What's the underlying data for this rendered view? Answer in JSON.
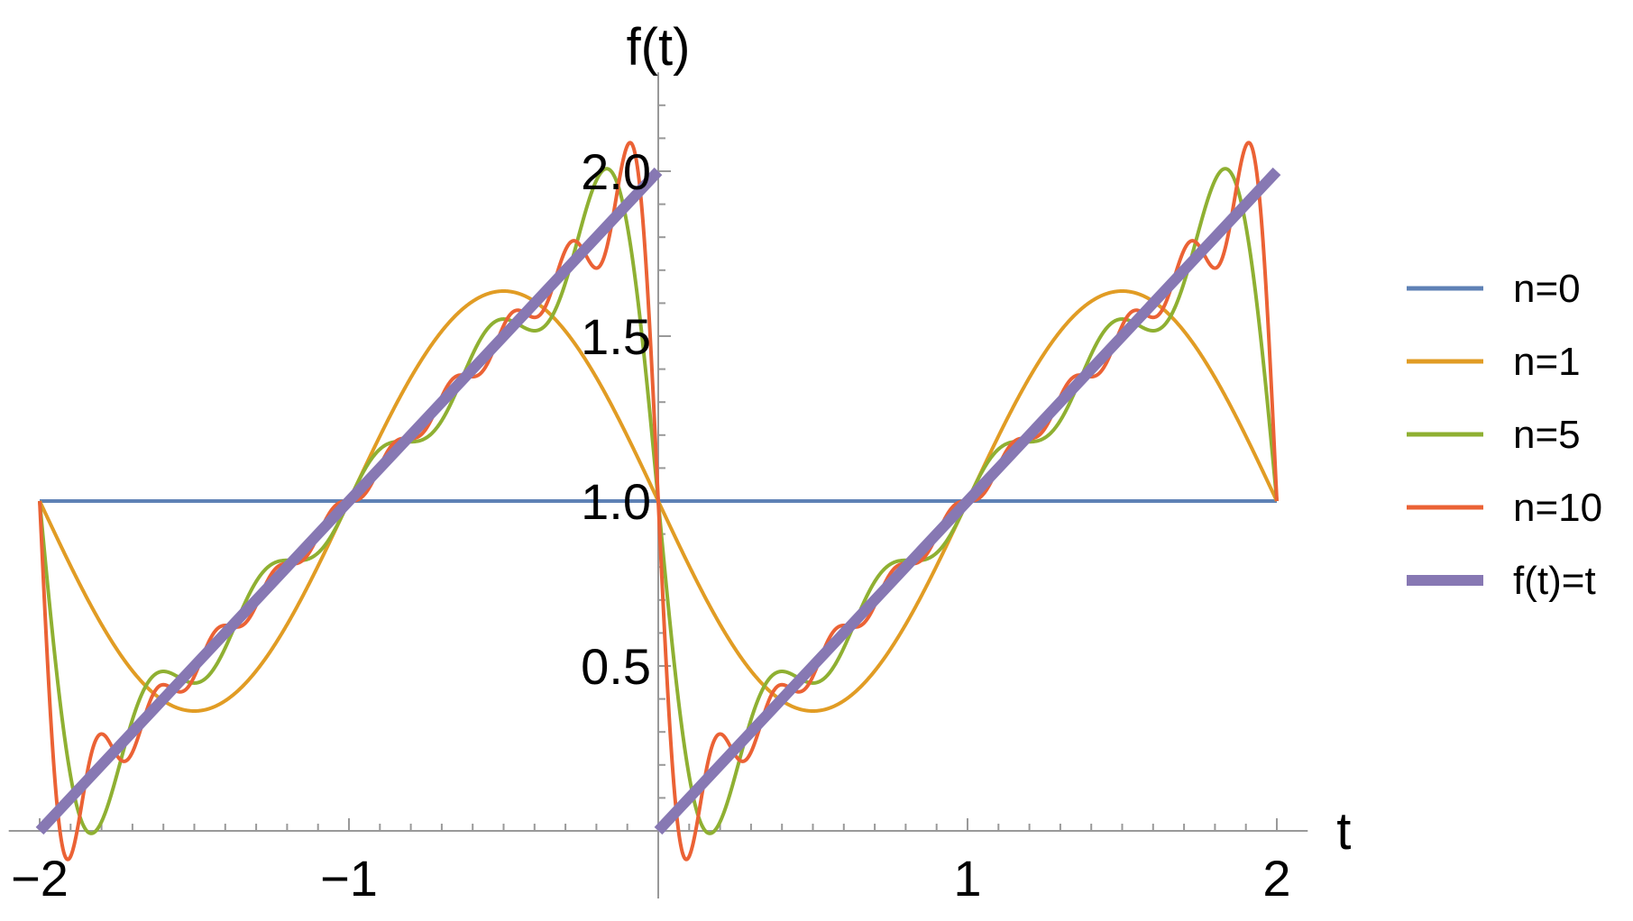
{
  "chart_data": {
    "type": "line",
    "xlabel": "t",
    "ylabel": "f(t)",
    "xlim": [
      -2.1,
      2.1
    ],
    "ylim": [
      0,
      2.3
    ],
    "x_ticks": [
      {
        "value": -2,
        "label": "−2"
      },
      {
        "value": -1,
        "label": "−1"
      },
      {
        "value": 1,
        "label": "1"
      },
      {
        "value": 2,
        "label": "2"
      }
    ],
    "y_ticks": [
      {
        "value": 0.5,
        "label": "0.5"
      },
      {
        "value": 1.0,
        "label": "1.0"
      },
      {
        "value": 1.5,
        "label": "1.5"
      },
      {
        "value": 2.0,
        "label": "2.0"
      }
    ],
    "x_range": [
      -2,
      2
    ],
    "series": [
      {
        "name": "n=0",
        "terms": 0,
        "color": "#5E81B5",
        "width": 4
      },
      {
        "name": "n=1",
        "terms": 1,
        "color": "#E19C24",
        "width": 4
      },
      {
        "name": "n=5",
        "terms": 5,
        "color": "#8FB032",
        "width": 4
      },
      {
        "name": "n=10",
        "terms": 10,
        "color": "#EB6235",
        "width": 4
      },
      {
        "name": "f(t)=t",
        "terms": -1,
        "color": "#8778B3",
        "width": 12
      }
    ],
    "legend_position": "right",
    "grid": false
  }
}
